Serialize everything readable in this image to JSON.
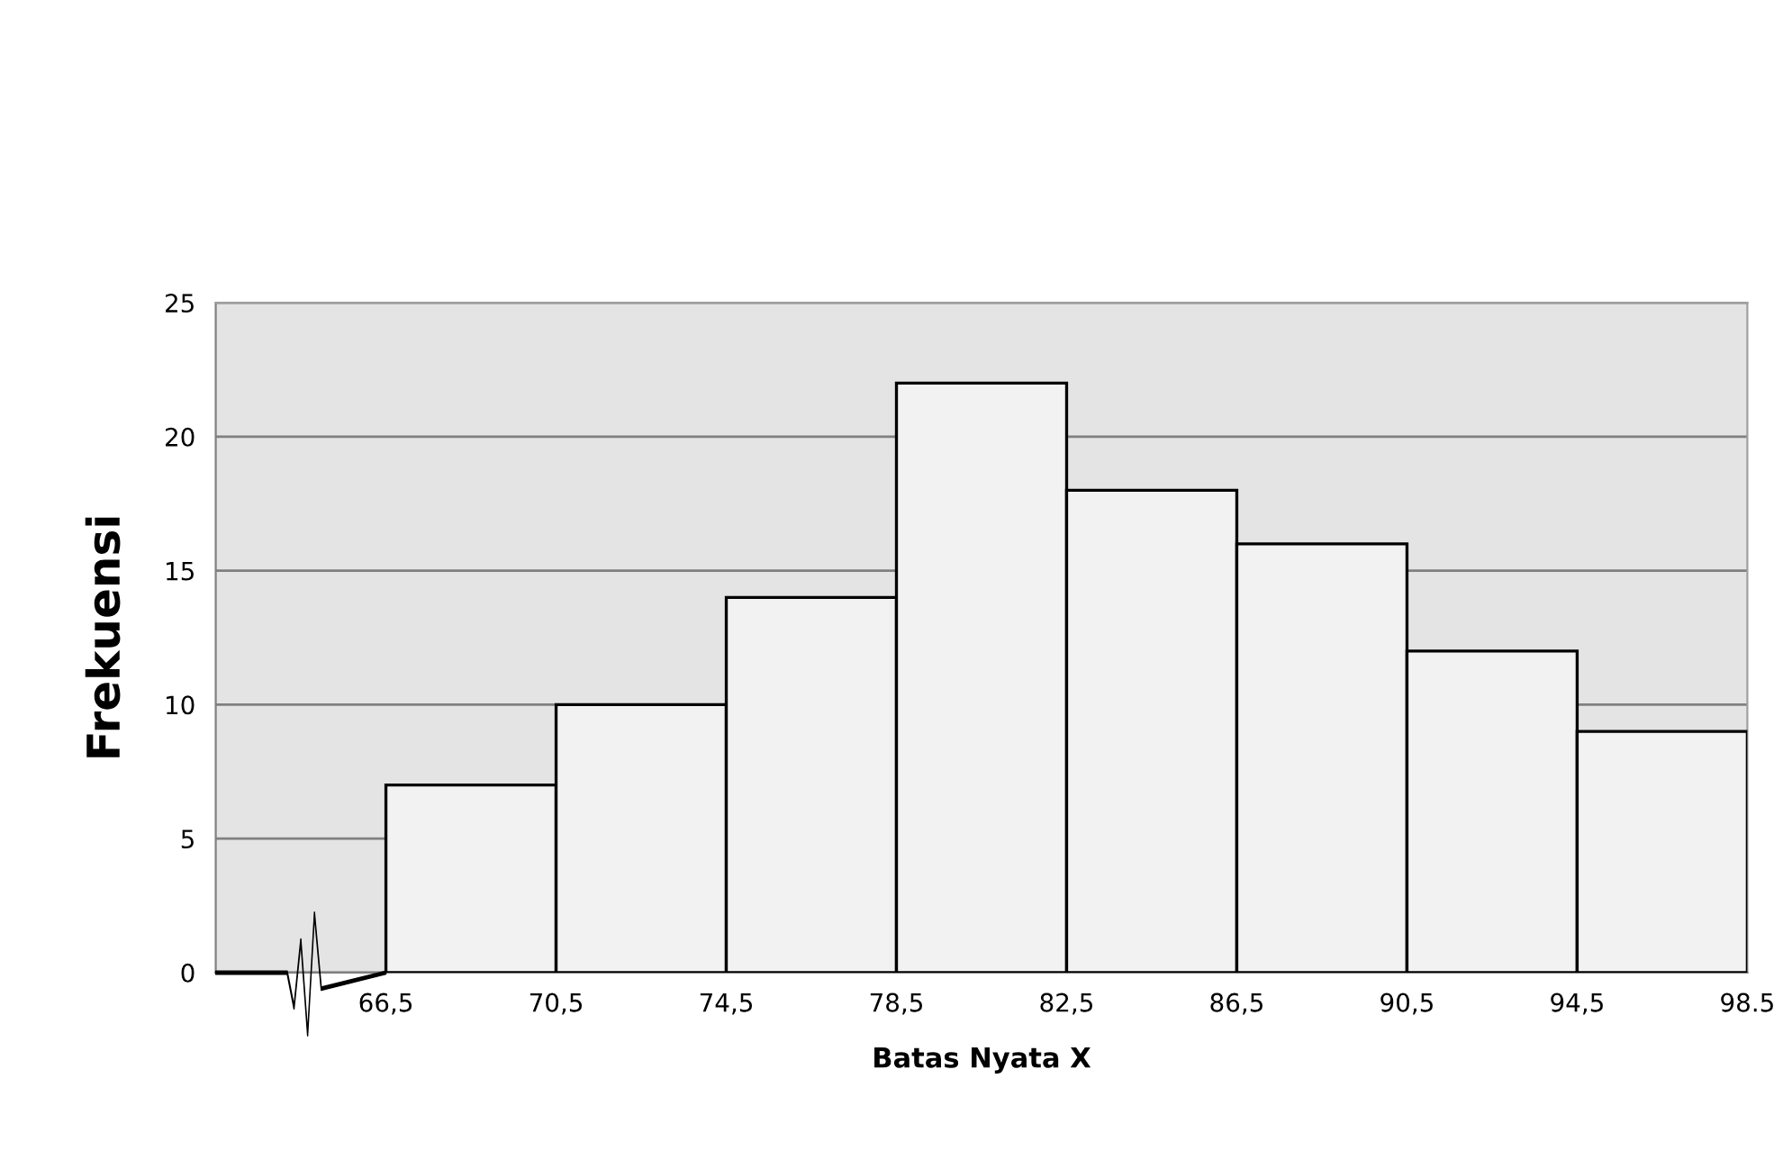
{
  "chart_data": {
    "type": "histogram",
    "xlabel": "Batas Nyata X",
    "ylabel": "Frekuensi",
    "bins": [
      66.5,
      70.5,
      74.5,
      78.5,
      82.5,
      86.5,
      90.5,
      94.5,
      98.5
    ],
    "values": [
      7,
      10,
      14,
      22,
      18,
      16,
      12,
      9
    ],
    "color": "#f2f2f2",
    "xlim": [
      62.5,
      98.5
    ],
    "xticks": [
      {
        "value": 66.5,
        "label": "66,5"
      },
      {
        "value": 70.5,
        "label": "70,5"
      },
      {
        "value": 74.5,
        "label": "74,5"
      },
      {
        "value": 78.5,
        "label": "78,5"
      },
      {
        "value": 82.5,
        "label": "82,5"
      },
      {
        "value": 86.5,
        "label": "86,5"
      },
      {
        "value": 90.5,
        "label": "90,5"
      },
      {
        "value": 94.5,
        "label": "94,5"
      },
      {
        "value": 98.5,
        "label": "98.5"
      }
    ],
    "ylim": [
      0,
      25
    ],
    "yticks": [
      0,
      5,
      10,
      15,
      20,
      25
    ],
    "grid": "y"
  }
}
